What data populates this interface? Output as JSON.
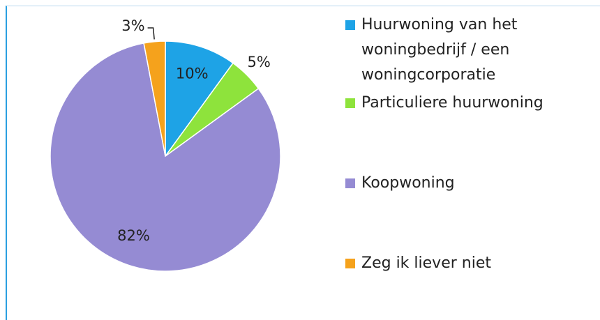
{
  "chart_data": {
    "type": "pie",
    "categories": [
      "Huurwoning van het woningbedrijf / een woningcorporatie",
      "Particuliere huurwoning",
      "Koopwoning",
      "Zeg ik liever niet"
    ],
    "values": [
      10,
      5,
      82,
      3
    ],
    "value_labels": [
      "10%",
      "5%",
      "82%",
      "3%"
    ],
    "colors": [
      "#1ea3e6",
      "#8ee33c",
      "#958bd3",
      "#f5a21c"
    ],
    "legend": "right"
  }
}
